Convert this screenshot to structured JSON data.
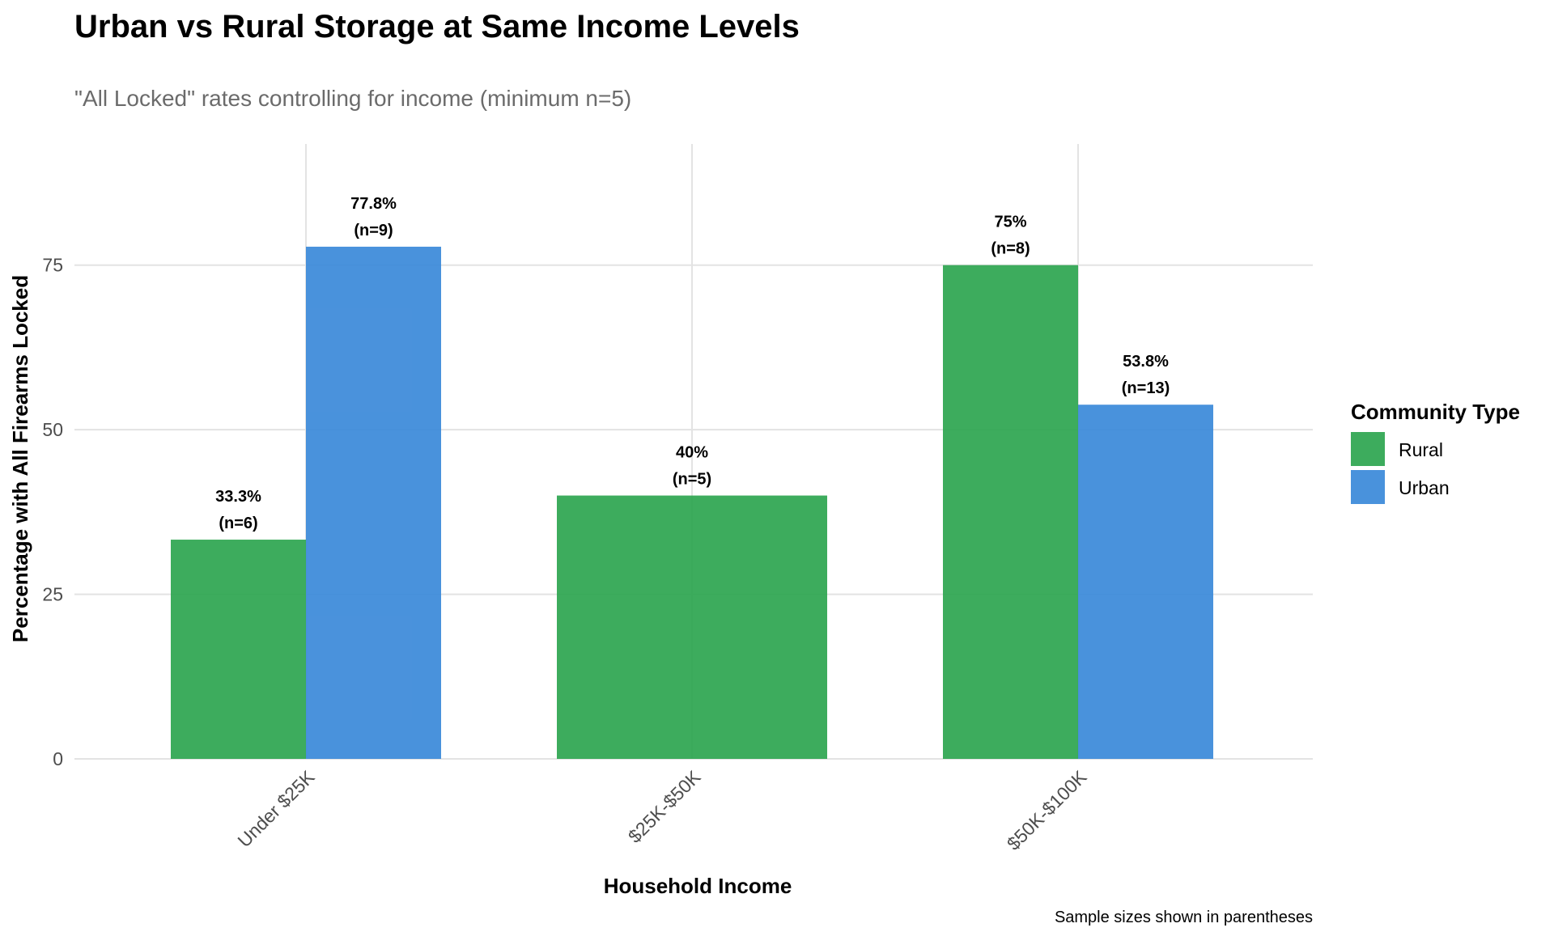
{
  "chart_data": {
    "type": "bar",
    "title": "Urban vs Rural Storage at Same Income Levels",
    "subtitle": "\"All Locked\" rates controlling for income (minimum n=5)",
    "xlabel": "Household Income",
    "ylabel": "Percentage with All Firearms Locked",
    "caption": "Sample sizes shown in parentheses",
    "categories": [
      "Under $25K",
      "$25K-$50K",
      "$50K-$100K"
    ],
    "ylim": [
      0,
      93.4
    ],
    "yticks": [
      0,
      25,
      50,
      75
    ],
    "grid": true,
    "legend": {
      "title": "Community Type",
      "position": "right"
    },
    "series": [
      {
        "name": "Rural",
        "color": "#2ca54f",
        "values": [
          33.3,
          40,
          75
        ],
        "labels": [
          "33.3%",
          "40%",
          "75%"
        ],
        "n_labels": [
          "(n=6)",
          "(n=5)",
          "(n=8)"
        ]
      },
      {
        "name": "Urban",
        "color": "#3a89d9",
        "values": [
          77.8,
          null,
          53.8
        ],
        "labels": [
          "77.8%",
          null,
          "53.8%"
        ],
        "n_labels": [
          "(n=9)",
          null,
          "(n=13)"
        ]
      }
    ]
  }
}
